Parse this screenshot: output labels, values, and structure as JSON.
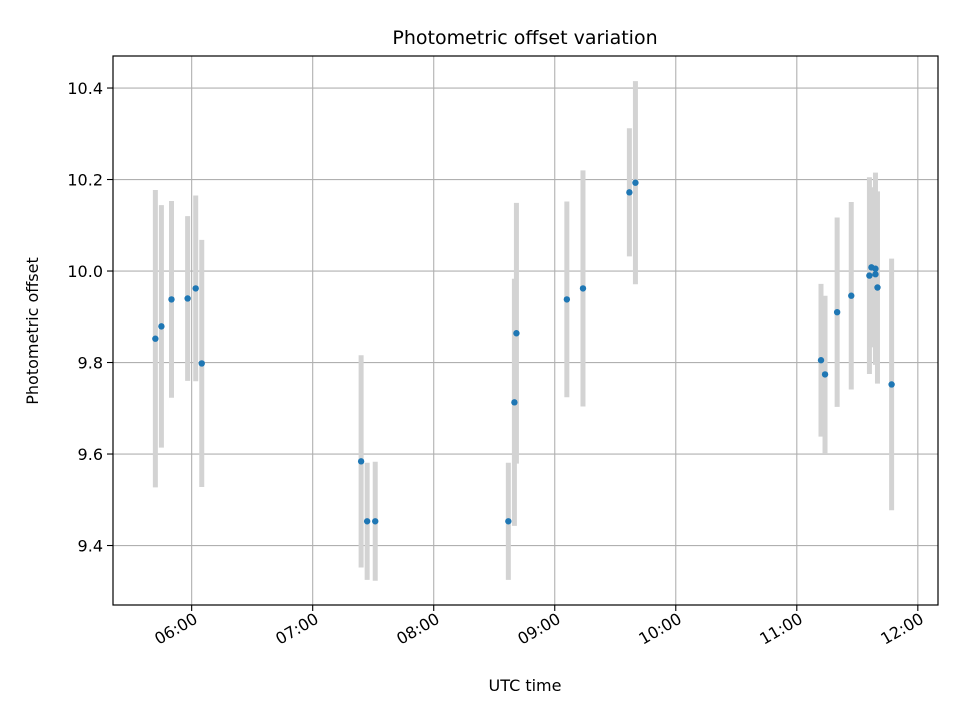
{
  "chart_data": {
    "type": "scatter",
    "title": "Photometric offset variation",
    "xlabel": "UTC time",
    "ylabel": "Photometric offset",
    "x_axis_type": "time",
    "xlim": [
      "05:21",
      "12:10"
    ],
    "ylim": [
      9.27,
      10.47
    ],
    "x_ticks": [
      "06:00",
      "07:00",
      "08:00",
      "09:00",
      "10:00",
      "11:00",
      "12:00"
    ],
    "y_ticks": [
      9.4,
      9.6,
      9.8,
      10.0,
      10.2,
      10.4
    ],
    "grid": true,
    "legend": "none",
    "colors": {
      "point": "#1f77b4",
      "errorbar": "#d3d3d3",
      "grid": "#b0b0b0"
    },
    "points": [
      {
        "x": "05:42",
        "y": 9.852,
        "yerr": 0.325
      },
      {
        "x": "05:45",
        "y": 9.879,
        "yerr": 0.265
      },
      {
        "x": "05:50",
        "y": 9.938,
        "yerr": 0.215
      },
      {
        "x": "05:58",
        "y": 9.94,
        "yerr": 0.18
      },
      {
        "x": "06:02",
        "y": 9.962,
        "yerr": 0.203
      },
      {
        "x": "06:05",
        "y": 9.798,
        "yerr": 0.27
      },
      {
        "x": "07:24",
        "y": 9.584,
        "yerr": 0.232
      },
      {
        "x": "07:27",
        "y": 9.453,
        "yerr": 0.128
      },
      {
        "x": "07:31",
        "y": 9.453,
        "yerr": 0.13
      },
      {
        "x": "08:37",
        "y": 9.453,
        "yerr": 0.128
      },
      {
        "x": "08:40",
        "y": 9.713,
        "yerr": 0.27
      },
      {
        "x": "08:41",
        "y": 9.864,
        "yerr": 0.285
      },
      {
        "x": "09:06",
        "y": 9.938,
        "yerr": 0.214
      },
      {
        "x": "09:14",
        "y": 9.962,
        "yerr": 0.258
      },
      {
        "x": "09:37",
        "y": 10.172,
        "yerr": 0.14
      },
      {
        "x": "09:40",
        "y": 10.193,
        "yerr": 0.222
      },
      {
        "x": "11:12",
        "y": 9.805,
        "yerr": 0.167
      },
      {
        "x": "11:14",
        "y": 9.774,
        "yerr": 0.172
      },
      {
        "x": "11:20",
        "y": 9.91,
        "yerr": 0.207
      },
      {
        "x": "11:27",
        "y": 9.946,
        "yerr": 0.205
      },
      {
        "x": "11:36",
        "y": 9.99,
        "yerr": 0.215
      },
      {
        "x": "11:37",
        "y": 10.008,
        "yerr": 0.175
      },
      {
        "x": "11:39",
        "y": 9.993,
        "yerr": 0.18
      },
      {
        "x": "11:39",
        "y": 10.005,
        "yerr": 0.21
      },
      {
        "x": "11:40",
        "y": 9.964,
        "yerr": 0.21
      },
      {
        "x": "11:47",
        "y": 9.752,
        "yerr": 0.275
      }
    ]
  }
}
